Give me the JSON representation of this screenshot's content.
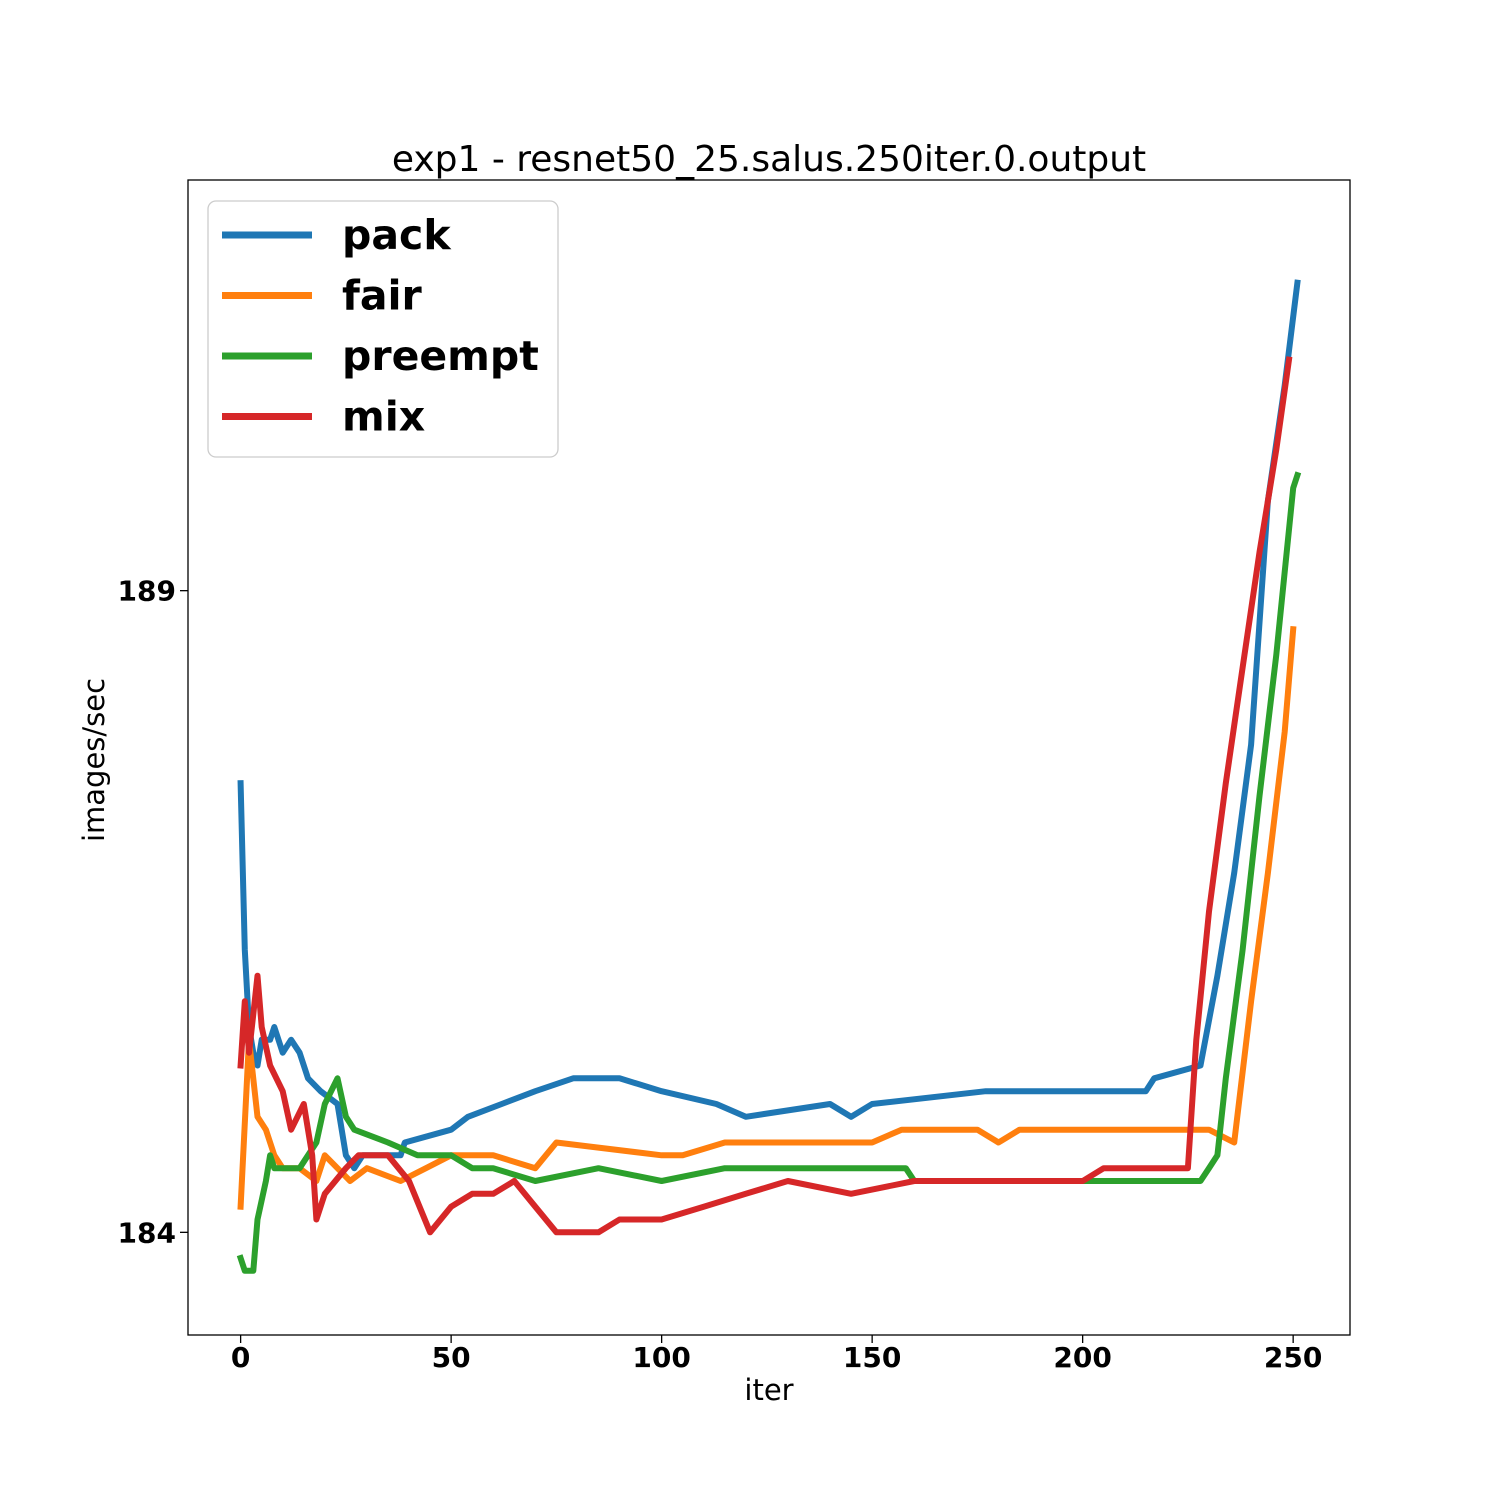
{
  "chart_data": {
    "type": "line",
    "title": "exp1 - resnet50_25.salus.250iter.0.output",
    "xlabel": "iter",
    "ylabel": "images/sec",
    "xlim": [
      -12.5,
      263.5
    ],
    "ylim": [
      183.2,
      192.2
    ],
    "xticks": [
      0,
      50,
      100,
      150,
      200,
      250
    ],
    "yticks": [
      184,
      189
    ],
    "grid": false,
    "legend_position": "top-left",
    "colors": {
      "pack": "#1f77b4",
      "fair": "#ff7f0e",
      "preempt": "#2ca02c",
      "mix": "#d62728"
    },
    "series": [
      {
        "name": "pack",
        "points": [
          [
            0,
            187.5
          ],
          [
            1,
            186.2
          ],
          [
            2,
            185.6
          ],
          [
            3,
            185.4
          ],
          [
            4,
            185.3
          ],
          [
            5,
            185.5
          ],
          [
            7,
            185.5
          ],
          [
            8,
            185.6
          ],
          [
            10,
            185.4
          ],
          [
            12,
            185.5
          ],
          [
            14,
            185.4
          ],
          [
            16,
            185.2
          ],
          [
            19,
            185.1
          ],
          [
            23,
            185.0
          ],
          [
            25,
            184.6
          ],
          [
            27,
            184.5
          ],
          [
            29,
            184.6
          ],
          [
            38,
            184.6
          ],
          [
            39,
            184.7
          ],
          [
            50,
            184.8
          ],
          [
            54,
            184.9
          ],
          [
            62,
            185.0
          ],
          [
            70,
            185.1
          ],
          [
            79,
            185.2
          ],
          [
            90,
            185.2
          ],
          [
            100,
            185.1
          ],
          [
            113,
            185.0
          ],
          [
            120,
            184.9
          ],
          [
            140,
            185.0
          ],
          [
            145,
            184.9
          ],
          [
            150,
            185.0
          ],
          [
            177,
            185.1
          ],
          [
            215,
            185.1
          ],
          [
            217,
            185.2
          ],
          [
            228,
            185.3
          ],
          [
            232,
            186.0
          ],
          [
            236,
            186.8
          ],
          [
            240,
            187.8
          ],
          [
            244,
            189.7
          ],
          [
            248,
            190.6
          ],
          [
            251,
            191.4
          ]
        ]
      },
      {
        "name": "fair",
        "points": [
          [
            0,
            184.2
          ],
          [
            2,
            185.5
          ],
          [
            4,
            184.9
          ],
          [
            6,
            184.8
          ],
          [
            8,
            184.6
          ],
          [
            10,
            184.5
          ],
          [
            14,
            184.5
          ],
          [
            18,
            184.4
          ],
          [
            20,
            184.6
          ],
          [
            26,
            184.4
          ],
          [
            30,
            184.5
          ],
          [
            38,
            184.4
          ],
          [
            44,
            184.5
          ],
          [
            50,
            184.6
          ],
          [
            60,
            184.6
          ],
          [
            70,
            184.5
          ],
          [
            75,
            184.7
          ],
          [
            100,
            184.6
          ],
          [
            105,
            184.6
          ],
          [
            115,
            184.7
          ],
          [
            150,
            184.7
          ],
          [
            157,
            184.8
          ],
          [
            175,
            184.8
          ],
          [
            180,
            184.7
          ],
          [
            185,
            184.8
          ],
          [
            230,
            184.8
          ],
          [
            236,
            184.7
          ],
          [
            240,
            185.8
          ],
          [
            244,
            186.8
          ],
          [
            248,
            187.9
          ],
          [
            250,
            188.7
          ]
        ]
      },
      {
        "name": "preempt",
        "points": [
          [
            0,
            183.8
          ],
          [
            1,
            183.7
          ],
          [
            3,
            183.7
          ],
          [
            4,
            184.1
          ],
          [
            6,
            184.4
          ],
          [
            7,
            184.6
          ],
          [
            8,
            184.5
          ],
          [
            10,
            184.5
          ],
          [
            14,
            184.5
          ],
          [
            18,
            184.7
          ],
          [
            20,
            185.0
          ],
          [
            23,
            185.2
          ],
          [
            25,
            184.9
          ],
          [
            27,
            184.8
          ],
          [
            35,
            184.7
          ],
          [
            42,
            184.6
          ],
          [
            50,
            184.6
          ],
          [
            55,
            184.5
          ],
          [
            60,
            184.5
          ],
          [
            70,
            184.4
          ],
          [
            85,
            184.5
          ],
          [
            100,
            184.4
          ],
          [
            115,
            184.5
          ],
          [
            130,
            184.5
          ],
          [
            158,
            184.5
          ],
          [
            160,
            184.4
          ],
          [
            200,
            184.4
          ],
          [
            228,
            184.4
          ],
          [
            230,
            184.5
          ],
          [
            232,
            184.6
          ],
          [
            234,
            185.2
          ],
          [
            238,
            186.2
          ],
          [
            242,
            187.4
          ],
          [
            246,
            188.5
          ],
          [
            250,
            189.8
          ],
          [
            251,
            189.9
          ]
        ]
      },
      {
        "name": "mix",
        "points": [
          [
            0,
            185.3
          ],
          [
            1,
            185.8
          ],
          [
            2,
            185.4
          ],
          [
            3,
            185.7
          ],
          [
            4,
            186.0
          ],
          [
            5,
            185.6
          ],
          [
            7,
            185.3
          ],
          [
            10,
            185.1
          ],
          [
            12,
            184.8
          ],
          [
            15,
            185.0
          ],
          [
            17,
            184.6
          ],
          [
            18,
            184.1
          ],
          [
            20,
            184.3
          ],
          [
            25,
            184.5
          ],
          [
            28,
            184.6
          ],
          [
            35,
            184.6
          ],
          [
            40,
            184.4
          ],
          [
            45,
            184.0
          ],
          [
            50,
            184.2
          ],
          [
            55,
            184.3
          ],
          [
            60,
            184.3
          ],
          [
            65,
            184.4
          ],
          [
            70,
            184.2
          ],
          [
            75,
            184.0
          ],
          [
            85,
            184.0
          ],
          [
            90,
            184.1
          ],
          [
            100,
            184.1
          ],
          [
            110,
            184.2
          ],
          [
            120,
            184.3
          ],
          [
            130,
            184.4
          ],
          [
            145,
            184.3
          ],
          [
            160,
            184.4
          ],
          [
            200,
            184.4
          ],
          [
            205,
            184.5
          ],
          [
            225,
            184.5
          ],
          [
            227,
            185.5
          ],
          [
            230,
            186.5
          ],
          [
            234,
            187.5
          ],
          [
            238,
            188.4
          ],
          [
            242,
            189.3
          ],
          [
            246,
            190.1
          ],
          [
            249,
            190.8
          ]
        ]
      }
    ]
  }
}
